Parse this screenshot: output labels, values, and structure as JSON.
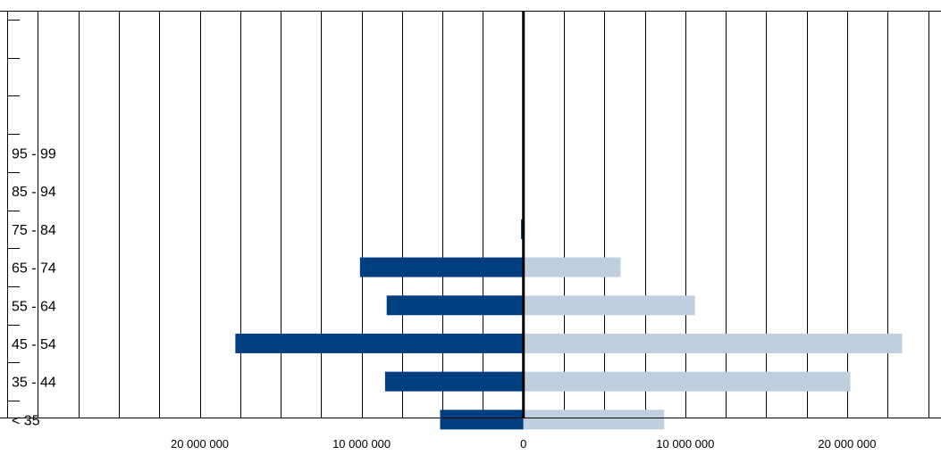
{
  "chart_data": {
    "type": "bar",
    "orientation": "horizontal-butterfly",
    "title": "",
    "xlabel": "",
    "ylabel": "",
    "categories": [
      "",
      "",
      "",
      "95 - 99",
      "85 - 94",
      "75 - 84",
      "65 - 74",
      "55 - 64",
      "45 - 54",
      "35 - 44",
      "< 35",
      ""
    ],
    "series": [
      {
        "side": "left",
        "color": "#003f7f",
        "values": [
          0,
          0,
          0,
          0,
          0,
          150000,
          10100000,
          8450000,
          17800000,
          8550000,
          5150000,
          0
        ]
      },
      {
        "side": "right",
        "color": "#bfcfdf",
        "values": [
          0,
          0,
          0,
          0,
          0,
          0,
          6000000,
          10600000,
          23400000,
          20200000,
          8700000,
          0
        ]
      }
    ],
    "xlim": [
      -31900000,
      25800000
    ],
    "xticks": [
      {
        "value": -20000000,
        "label": "20 000 000"
      },
      {
        "value": -10000000,
        "label": "10 000 000"
      },
      {
        "value": 0,
        "label": "0"
      },
      {
        "value": 10000000,
        "label": "10 000 000"
      },
      {
        "value": 20000000,
        "label": "20 000 000"
      }
    ],
    "grid_step": 2500000,
    "grid": true,
    "legend": "none"
  }
}
